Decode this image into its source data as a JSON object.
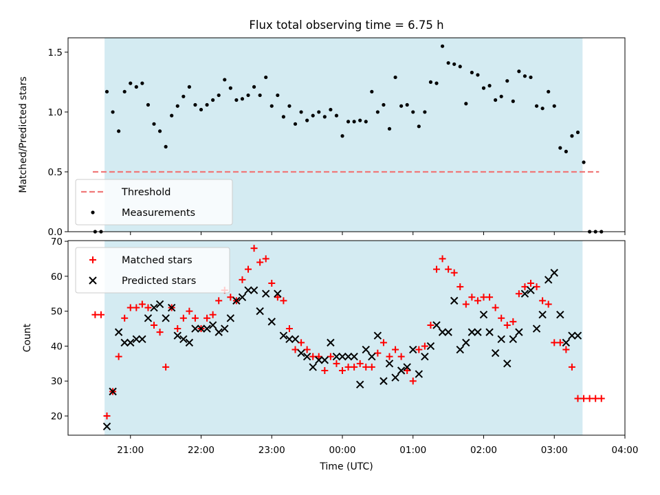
{
  "chart_data": [
    {
      "type": "scatter",
      "title": "Flux total observing time = 6.75 h",
      "ylabel": "Matched/Predicted stars",
      "xlabel": "",
      "ylim": [
        0,
        1.62
      ],
      "yticks": [
        "0.0",
        "0.5",
        "1.0",
        "1.5"
      ],
      "ytick_values": [
        0,
        0.5,
        1.0,
        1.5
      ],
      "shaded_interval": [
        "20:38",
        "03:24"
      ],
      "shade_color": "#d4ebf2",
      "legend_position": "lower-left",
      "series": [
        {
          "name": "Threshold",
          "kind": "dashed-line",
          "color": "#f07878",
          "x": [
            "20:28",
            "03:38"
          ],
          "y": [
            0.5,
            0.5
          ]
        },
        {
          "name": "Measurements",
          "kind": "dots",
          "color": "#000000",
          "x": [
            "20:30",
            "20:35",
            "20:40",
            "20:45",
            "20:50",
            "20:55",
            "21:00",
            "21:05",
            "21:10",
            "21:15",
            "21:20",
            "21:25",
            "21:30",
            "21:35",
            "21:40",
            "21:45",
            "21:50",
            "21:55",
            "22:00",
            "22:05",
            "22:10",
            "22:15",
            "22:20",
            "22:25",
            "22:30",
            "22:35",
            "22:40",
            "22:45",
            "22:50",
            "22:55",
            "23:00",
            "23:05",
            "23:10",
            "23:15",
            "23:20",
            "23:25",
            "23:30",
            "23:35",
            "23:40",
            "23:45",
            "23:50",
            "23:55",
            "00:00",
            "00:05",
            "00:10",
            "00:15",
            "00:20",
            "00:25",
            "00:30",
            "00:35",
            "00:40",
            "00:45",
            "00:50",
            "00:55",
            "01:00",
            "01:05",
            "01:10",
            "01:15",
            "01:20",
            "01:25",
            "01:30",
            "01:35",
            "01:40",
            "01:45",
            "01:50",
            "01:55",
            "02:00",
            "02:05",
            "02:10",
            "02:15",
            "02:20",
            "02:25",
            "02:30",
            "02:35",
            "02:40",
            "02:45",
            "02:50",
            "02:55",
            "03:00",
            "03:05",
            "03:10",
            "03:15",
            "03:20",
            "03:25",
            "03:30",
            "03:35",
            "03:40"
          ],
          "y": [
            0.0,
            0.0,
            1.17,
            1.0,
            0.84,
            1.17,
            1.24,
            1.21,
            1.24,
            1.06,
            0.9,
            0.84,
            0.71,
            0.97,
            1.05,
            1.13,
            1.21,
            1.06,
            1.02,
            1.06,
            1.1,
            1.14,
            1.27,
            1.2,
            1.1,
            1.11,
            1.14,
            1.21,
            1.14,
            1.29,
            1.05,
            1.14,
            0.96,
            1.05,
            0.9,
            1.0,
            0.93,
            0.97,
            1.0,
            0.96,
            1.02,
            0.97,
            0.8,
            0.92,
            0.92,
            0.93,
            0.92,
            1.17,
            1.0,
            1.06,
            0.86,
            1.29,
            1.05,
            1.06,
            1.0,
            0.88,
            1.0,
            1.25,
            1.24,
            1.55,
            1.41,
            1.4,
            1.38,
            1.07,
            1.33,
            1.31,
            1.2,
            1.22,
            1.1,
            1.13,
            1.26,
            1.09,
            1.34,
            1.3,
            1.29,
            1.05,
            1.03,
            1.17,
            1.05,
            0.7,
            0.67,
            0.8,
            0.83,
            0.58,
            0.0,
            0.0,
            0.0
          ]
        }
      ]
    },
    {
      "type": "scatter",
      "title": "",
      "ylabel": "Count",
      "xlabel": "Time (UTC)",
      "ylim": [
        14.5,
        70.2
      ],
      "yticks": [
        "20",
        "30",
        "40",
        "50",
        "60",
        "70"
      ],
      "ytick_values": [
        20,
        30,
        40,
        50,
        60,
        70
      ],
      "xlim": [
        "20:07",
        "04:00"
      ],
      "xticks": [
        "21:00",
        "22:00",
        "23:00",
        "00:00",
        "01:00",
        "02:00",
        "03:00",
        "04:00"
      ],
      "shaded_interval": [
        "20:38",
        "03:24"
      ],
      "shade_color": "#d4ebf2",
      "legend_position": "top-left",
      "series": [
        {
          "name": "Matched stars",
          "kind": "plus",
          "color": "#ff0000",
          "x": [
            "20:30",
            "20:35",
            "20:40",
            "20:45",
            "20:50",
            "20:55",
            "21:00",
            "21:05",
            "21:10",
            "21:15",
            "21:20",
            "21:25",
            "21:30",
            "21:35",
            "21:40",
            "21:45",
            "21:50",
            "21:55",
            "22:00",
            "22:05",
            "22:10",
            "22:15",
            "22:20",
            "22:25",
            "22:30",
            "22:35",
            "22:40",
            "22:45",
            "22:50",
            "22:55",
            "23:00",
            "23:05",
            "23:10",
            "23:15",
            "23:20",
            "23:25",
            "23:30",
            "23:35",
            "23:40",
            "23:45",
            "23:50",
            "23:55",
            "00:00",
            "00:05",
            "00:10",
            "00:15",
            "00:20",
            "00:25",
            "00:30",
            "00:35",
            "00:40",
            "00:45",
            "00:50",
            "00:55",
            "01:00",
            "01:05",
            "01:10",
            "01:15",
            "01:20",
            "01:25",
            "01:30",
            "01:35",
            "01:40",
            "01:45",
            "01:50",
            "01:55",
            "02:00",
            "02:05",
            "02:10",
            "02:15",
            "02:20",
            "02:25",
            "02:30",
            "02:35",
            "02:40",
            "02:45",
            "02:50",
            "02:55",
            "03:00",
            "03:05",
            "03:10",
            "03:15",
            "03:20",
            "03:25",
            "03:30",
            "03:35",
            "03:40"
          ],
          "y": [
            49,
            49,
            20,
            27,
            37,
            48,
            51,
            51,
            52,
            51,
            46,
            44,
            34,
            51,
            45,
            48,
            50,
            48,
            45,
            48,
            49,
            53,
            56,
            54,
            53,
            59,
            62,
            68,
            64,
            65,
            58,
            54,
            53,
            45,
            39,
            41,
            39,
            37,
            37,
            33,
            37,
            35,
            33,
            34,
            34,
            35,
            34,
            34,
            38,
            41,
            37,
            39,
            37,
            33,
            30,
            39,
            40,
            46,
            62,
            65,
            62,
            61,
            57,
            52,
            54,
            53,
            54,
            54,
            51,
            48,
            46,
            47,
            55,
            57,
            58,
            57,
            53,
            52,
            41,
            41,
            39,
            34,
            25,
            25,
            25,
            25,
            25
          ]
        },
        {
          "name": "Predicted stars",
          "kind": "x",
          "color": "#000000",
          "x": [
            "20:40",
            "20:45",
            "20:50",
            "20:55",
            "21:00",
            "21:05",
            "21:10",
            "21:15",
            "21:20",
            "21:25",
            "21:30",
            "21:35",
            "21:40",
            "21:45",
            "21:50",
            "21:55",
            "22:00",
            "22:05",
            "22:10",
            "22:15",
            "22:20",
            "22:25",
            "22:30",
            "22:35",
            "22:40",
            "22:45",
            "22:50",
            "22:55",
            "23:00",
            "23:05",
            "23:10",
            "23:15",
            "23:20",
            "23:25",
            "23:30",
            "23:35",
            "23:40",
            "23:45",
            "23:50",
            "23:55",
            "00:00",
            "00:05",
            "00:10",
            "00:15",
            "00:20",
            "00:25",
            "00:30",
            "00:35",
            "00:40",
            "00:45",
            "00:50",
            "00:55",
            "01:00",
            "01:05",
            "01:10",
            "01:15",
            "01:20",
            "01:25",
            "01:30",
            "01:35",
            "01:40",
            "01:45",
            "01:50",
            "01:55",
            "02:00",
            "02:05",
            "02:10",
            "02:15",
            "02:20",
            "02:25",
            "02:30",
            "02:35",
            "02:40",
            "02:45",
            "02:50",
            "02:55",
            "03:00",
            "03:05",
            "03:10",
            "03:15",
            "03:20"
          ],
          "y": [
            17,
            27,
            44,
            41,
            41,
            42,
            42,
            48,
            51,
            52,
            48,
            51,
            43,
            42,
            41,
            45,
            45,
            45,
            46,
            44,
            45,
            48,
            53,
            54,
            56,
            56,
            50,
            55,
            47,
            55,
            43,
            42,
            42,
            38,
            37,
            34,
            36,
            36,
            41,
            37,
            37,
            37,
            37,
            29,
            39,
            37,
            43,
            30,
            35,
            31,
            33,
            34,
            39,
            32,
            37,
            40,
            46,
            44,
            44,
            53,
            39,
            41,
            44,
            44,
            49,
            44,
            38,
            42,
            35,
            42,
            44,
            55,
            56,
            45,
            49,
            59,
            61,
            49,
            41,
            43,
            43
          ]
        }
      ]
    }
  ]
}
